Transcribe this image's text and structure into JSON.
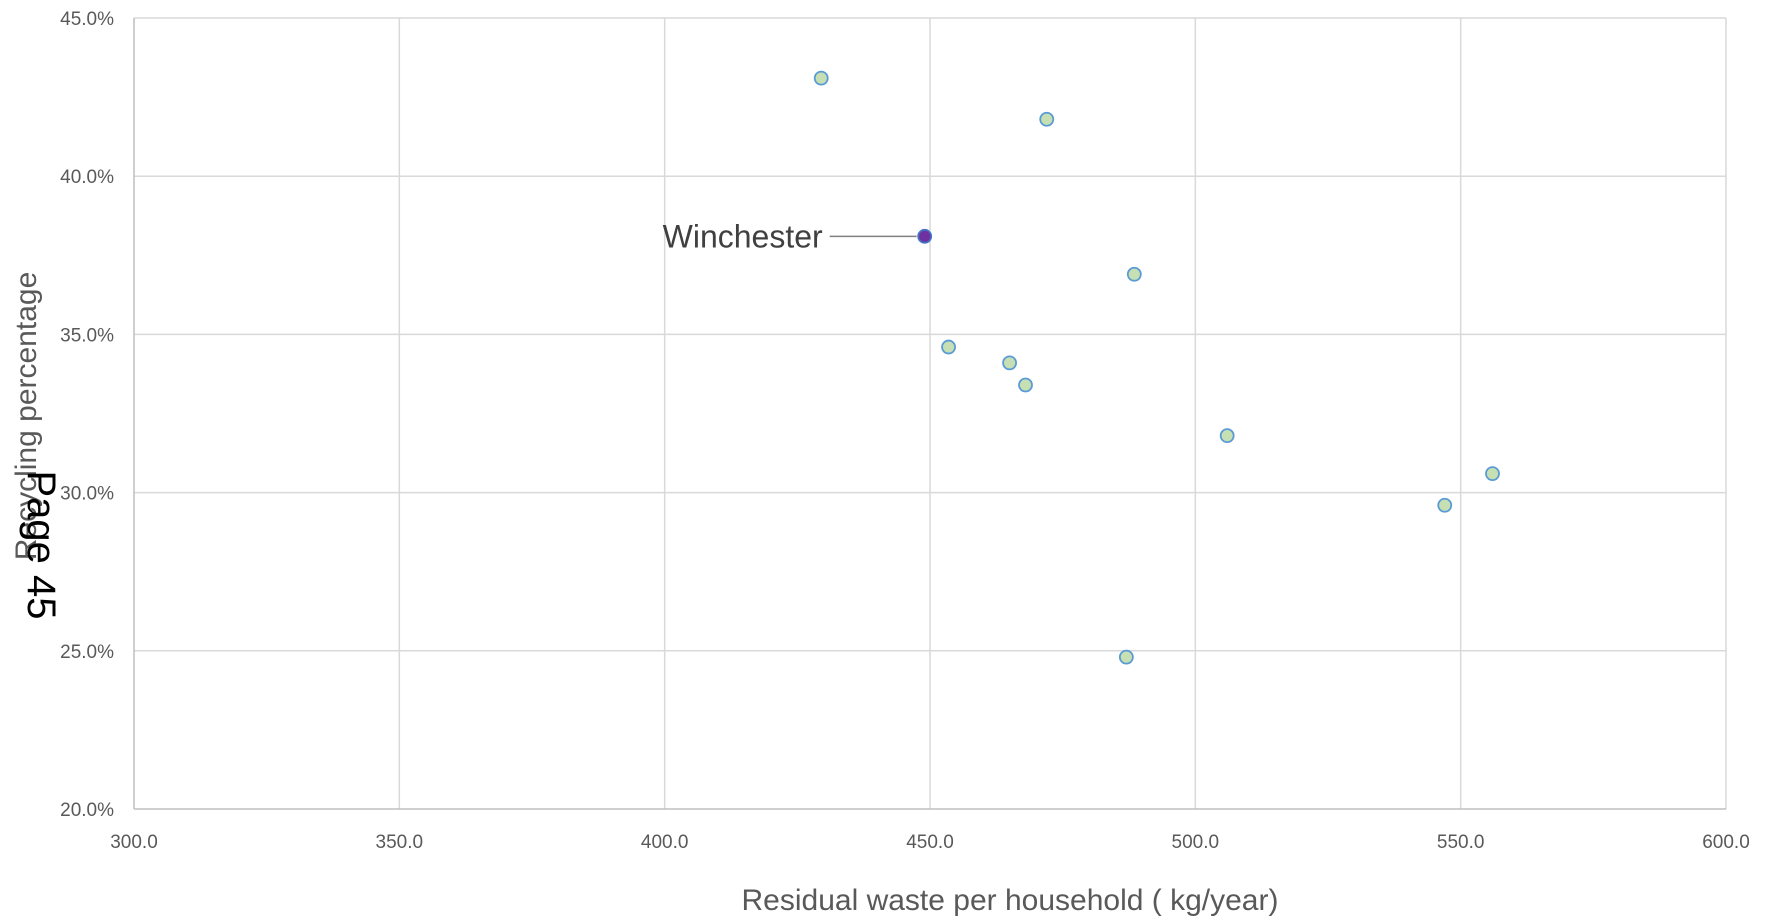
{
  "chart_data": {
    "type": "scatter",
    "title": "",
    "xlabel": "Residual waste per household ( kg/year)",
    "ylabel": "Recycling percentage",
    "xlim": [
      300,
      600
    ],
    "ylim": [
      20,
      45
    ],
    "x_ticks": [
      "300.0",
      "350.0",
      "400.0",
      "450.0",
      "500.0",
      "550.0",
      "600.0"
    ],
    "y_ticks": [
      "20.0%",
      "25.0%",
      "30.0%",
      "35.0%",
      "40.0%",
      "45.0%"
    ],
    "grid": true,
    "legend": "none",
    "points": [
      {
        "x": 429.5,
        "y": 43.1
      },
      {
        "x": 472.0,
        "y": 41.8
      },
      {
        "x": 449.0,
        "y": 38.1,
        "label": "Winchester",
        "highlight": true
      },
      {
        "x": 488.5,
        "y": 36.9
      },
      {
        "x": 453.5,
        "y": 34.6
      },
      {
        "x": 465.0,
        "y": 34.1
      },
      {
        "x": 468.0,
        "y": 33.4
      },
      {
        "x": 506.0,
        "y": 31.8
      },
      {
        "x": 556.0,
        "y": 30.6
      },
      {
        "x": 547.0,
        "y": 29.6
      },
      {
        "x": 487.0,
        "y": 24.8
      }
    ],
    "colors": {
      "marker_fill": "#c6e0b4",
      "marker_stroke": "#5b9bd5",
      "highlight_fill": "#7030a0",
      "highlight_stroke": "#4472c4",
      "grid": "#d9d9d9",
      "axis": "#bfbfbf"
    }
  },
  "page_stamp": "Page 45"
}
